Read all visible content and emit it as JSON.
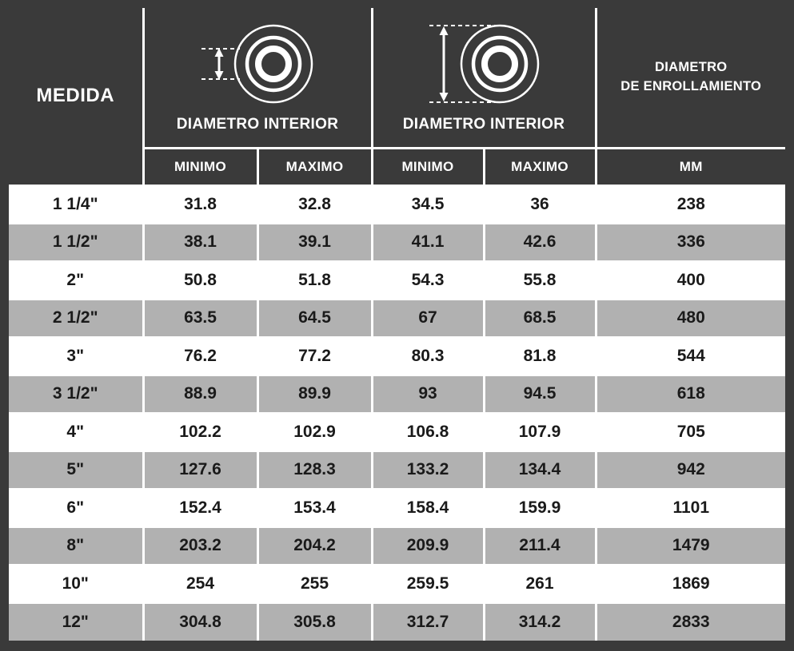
{
  "header": {
    "medida": "MEDIDA",
    "inner": {
      "label": "DIAMETRO INTERIOR",
      "min": "MINIMO",
      "max": "MAXIMO"
    },
    "outer": {
      "label": "DIAMETRO INTERIOR",
      "min": "MINIMO",
      "max": "MAXIMO"
    },
    "winding": {
      "line1": "DIAMETRO",
      "line2": "DE ENROLLAMIENTO",
      "unit": "MM"
    }
  },
  "icons": {
    "inner_diameter": "inner-diameter-coil-icon",
    "outer_diameter": "outer-diameter-coil-icon"
  },
  "colors": {
    "header_bg": "#3a3a3a",
    "header_text": "#ffffff",
    "grid_lines": "#ffffff",
    "row_even_bg": "#b1b1b1",
    "row_odd_bg": "#ffffff",
    "body_text": "#1a1a1a"
  },
  "chart_data": {
    "type": "table",
    "title": "",
    "columns": [
      "MEDIDA",
      "DIAMETRO INTERIOR MINIMO",
      "DIAMETRO INTERIOR MAXIMO",
      "DIAMETRO INTERIOR MINIMO",
      "DIAMETRO INTERIOR MAXIMO",
      "DIAMETRO DE ENROLLAMIENTO MM"
    ],
    "rows": [
      [
        "1 1/4\"",
        "31.8",
        "32.8",
        "34.5",
        "36",
        "238"
      ],
      [
        "1 1/2\"",
        "38.1",
        "39.1",
        "41.1",
        "42.6",
        "336"
      ],
      [
        "2\"",
        "50.8",
        "51.8",
        "54.3",
        "55.8",
        "400"
      ],
      [
        "2 1/2\"",
        "63.5",
        "64.5",
        "67",
        "68.5",
        "480"
      ],
      [
        "3\"",
        "76.2",
        "77.2",
        "80.3",
        "81.8",
        "544"
      ],
      [
        "3 1/2\"",
        "88.9",
        "89.9",
        "93",
        "94.5",
        "618"
      ],
      [
        "4\"",
        "102.2",
        "102.9",
        "106.8",
        "107.9",
        "705"
      ],
      [
        "5\"",
        "127.6",
        "128.3",
        "133.2",
        "134.4",
        "942"
      ],
      [
        "6\"",
        "152.4",
        "153.4",
        "158.4",
        "159.9",
        "1101"
      ],
      [
        "8\"",
        "203.2",
        "204.2",
        "209.9",
        "211.4",
        "1479"
      ],
      [
        "10\"",
        "254",
        "255",
        "259.5",
        "261",
        "1869"
      ],
      [
        "12\"",
        "304.8",
        "305.8",
        "312.7",
        "314.2",
        "2833"
      ]
    ]
  }
}
